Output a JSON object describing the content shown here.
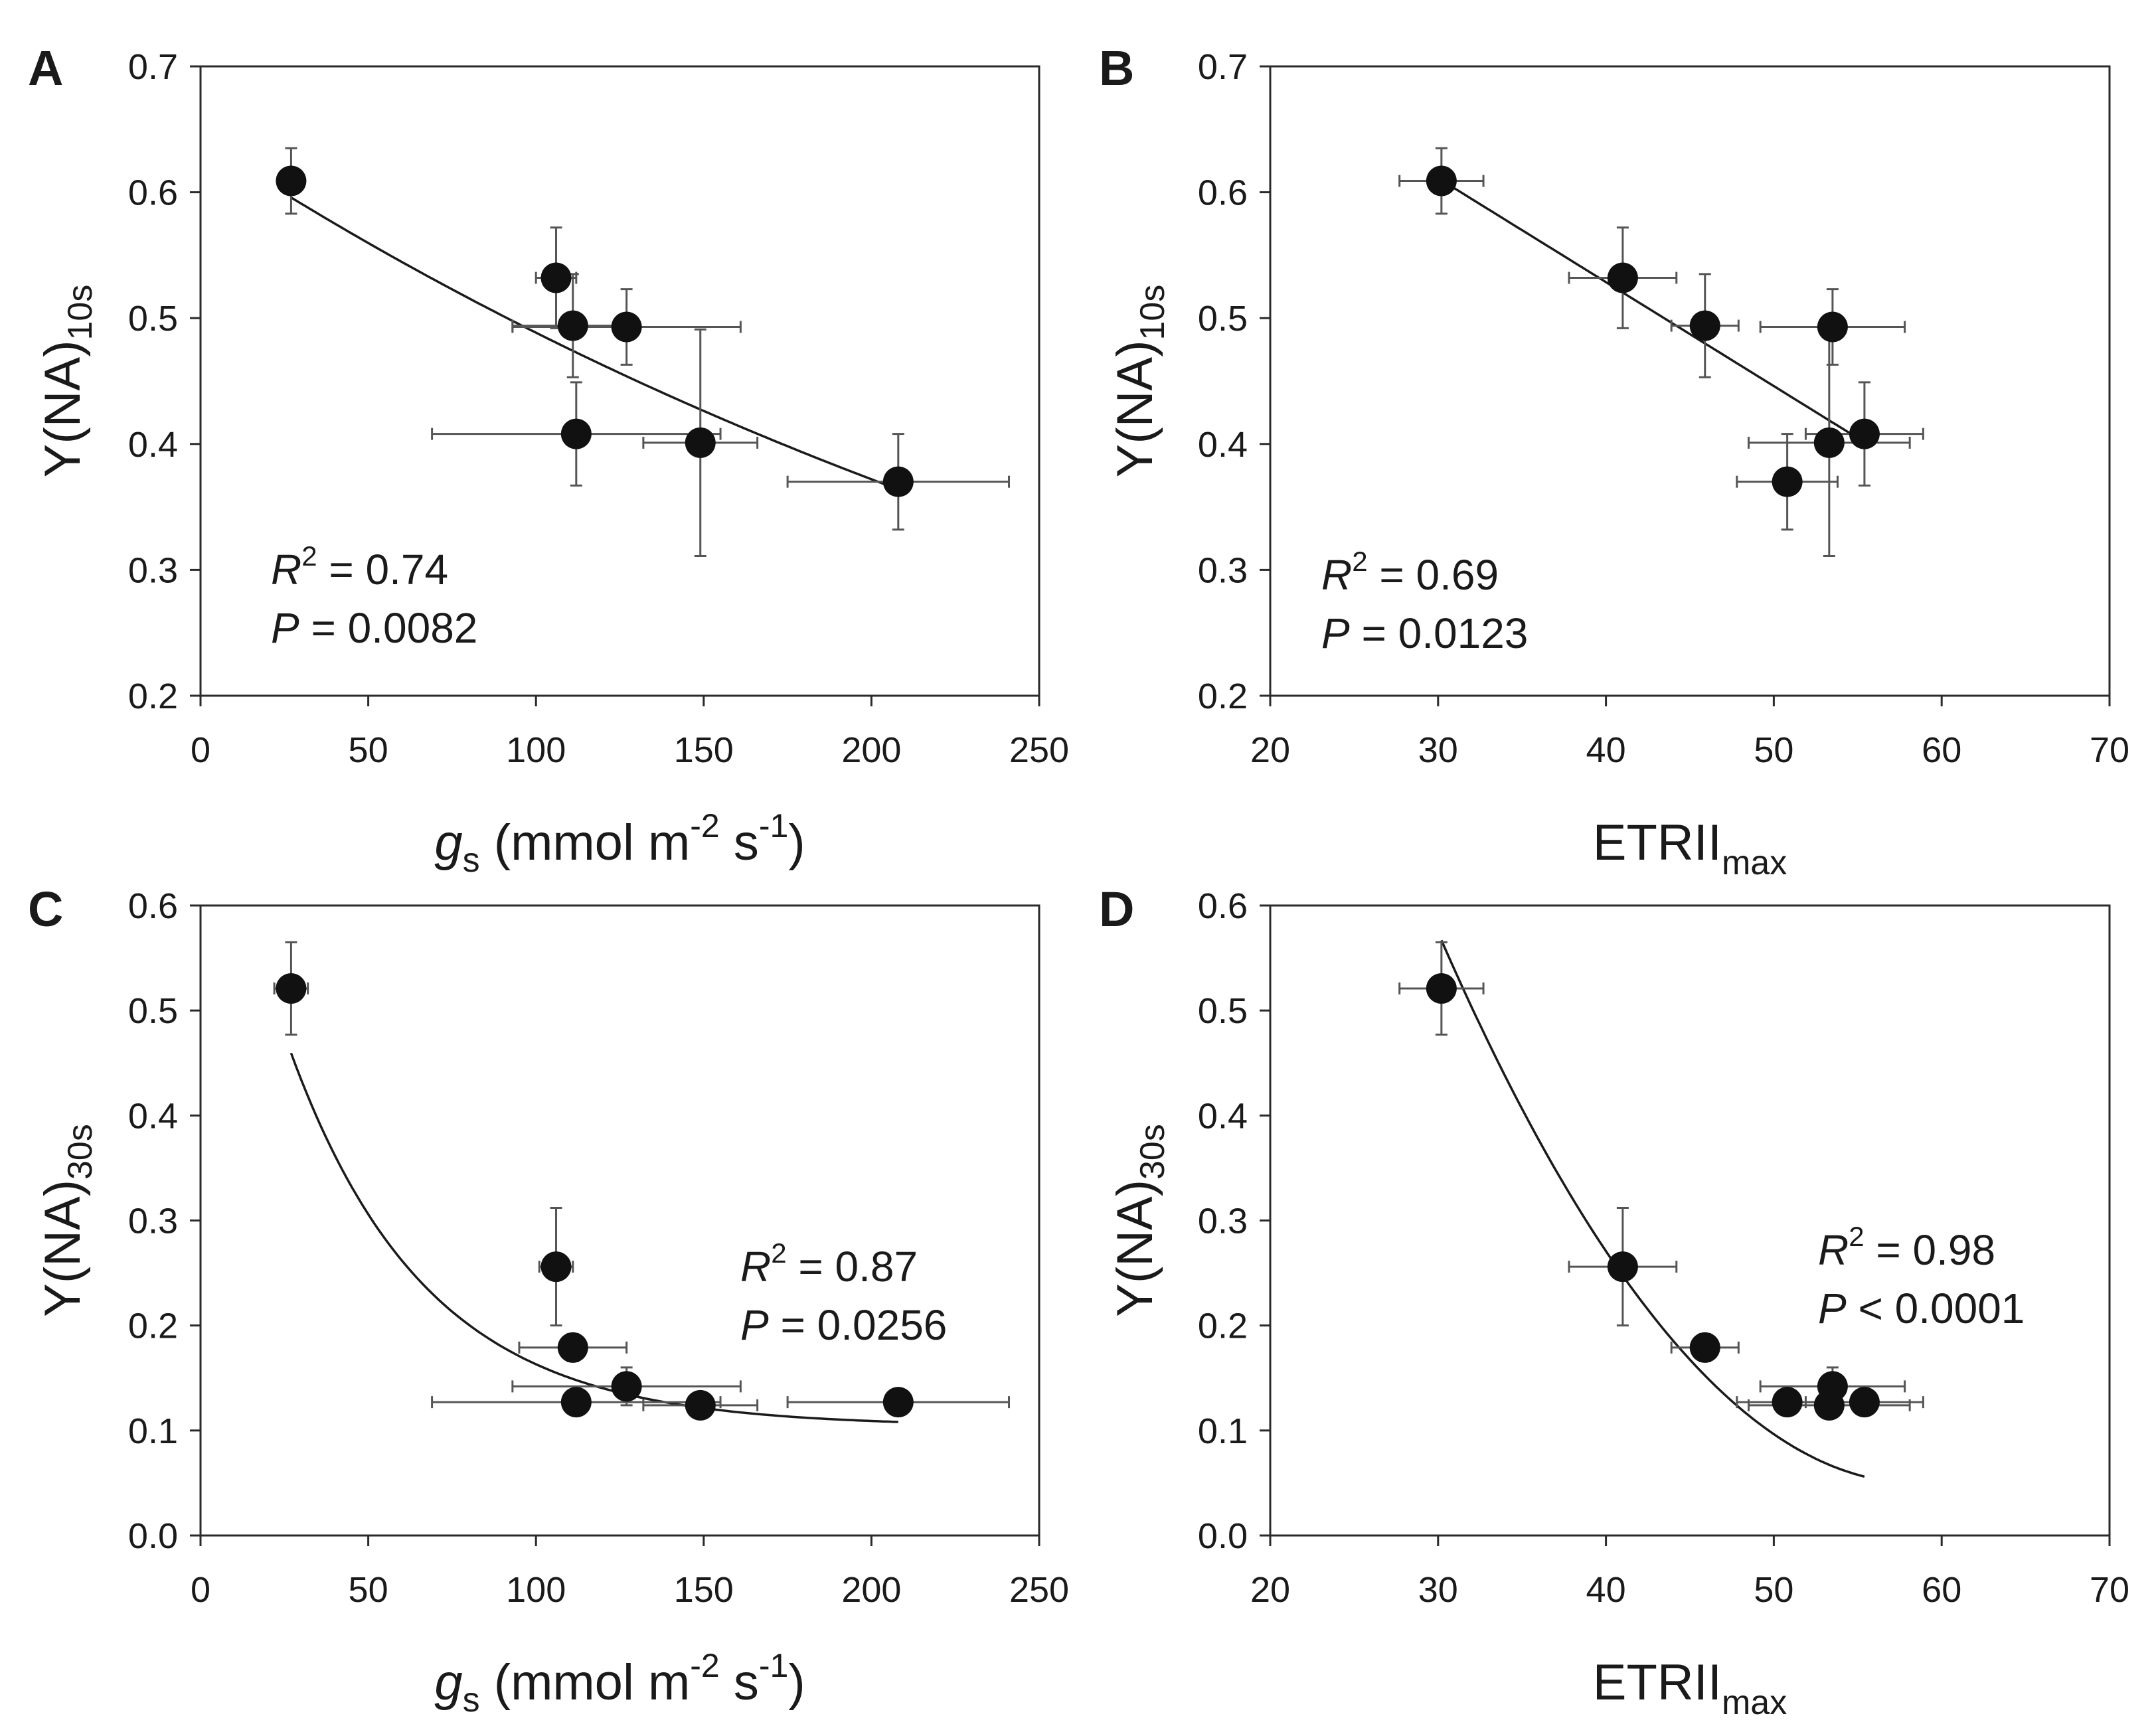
{
  "figure": {
    "description": "Four-panel scatter plot figure with regression fits"
  },
  "chart_data": [
    {
      "id": "A",
      "type": "scatter",
      "panel_label": "A",
      "xlabel": {
        "main": "g",
        "sub": "s",
        "rest": " (mmol m",
        "sup1": "-2",
        "mid": " s",
        "sup2": "-1",
        "end": ")"
      },
      "ylabel": {
        "main": "Y(NA)",
        "sub": "10s"
      },
      "xlim": [
        0,
        250
      ],
      "ylim": [
        0.2,
        0.7
      ],
      "xticks": [
        0,
        50,
        100,
        150,
        200,
        250
      ],
      "xtick_labels": [
        "0",
        "50",
        "100",
        "150",
        "200",
        "250"
      ],
      "yticks": [
        0.2,
        0.3,
        0.4,
        0.5,
        0.6,
        0.7
      ],
      "ytick_labels": [
        "0.2",
        "0.3",
        "0.4",
        "0.5",
        "0.6",
        "0.7"
      ],
      "points": [
        {
          "x": 27,
          "y": 0.609,
          "xerr": 3,
          "yerr": 0.026
        },
        {
          "x": 106,
          "y": 0.532,
          "xerr": 6,
          "yerr": 0.04
        },
        {
          "x": 111,
          "y": 0.494,
          "xerr": 18,
          "yerr": 0.041
        },
        {
          "x": 127,
          "y": 0.493,
          "xerr": 34,
          "yerr": 0.03
        },
        {
          "x": 112,
          "y": 0.408,
          "xerr": 43,
          "yerr": 0.041
        },
        {
          "x": 149,
          "y": 0.401,
          "xerr": 17,
          "yerr": 0.09
        },
        {
          "x": 208,
          "y": 0.37,
          "xerr": 33,
          "yerr": 0.038
        }
      ],
      "fit": {
        "model": "exponential",
        "a": 0.6413,
        "b": 0.002723,
        "c": 0,
        "x_range": [
          27,
          208
        ]
      },
      "stats": {
        "r2_label": "R",
        "r2_sup": "2",
        "r2_value": " = 0.74",
        "p_label": "P",
        "p_value": " = 0.0082"
      },
      "stats_position": "bottom-left"
    },
    {
      "id": "B",
      "type": "scatter",
      "panel_label": "B",
      "xlabel": {
        "main": "ETRII",
        "sub": "max"
      },
      "ylabel": {
        "main": "Y(NA)",
        "sub": "10s"
      },
      "xlim": [
        20,
        70
      ],
      "ylim": [
        0.2,
        0.7
      ],
      "xticks": [
        20,
        30,
        40,
        50,
        60,
        70
      ],
      "xtick_labels": [
        "20",
        "30",
        "40",
        "50",
        "60",
        "70"
      ],
      "yticks": [
        0.2,
        0.3,
        0.4,
        0.5,
        0.6,
        0.7
      ],
      "ytick_labels": [
        "0.2",
        "0.3",
        "0.4",
        "0.5",
        "0.6",
        "0.7"
      ],
      "points": [
        {
          "x": 30.2,
          "y": 0.609,
          "xerr": 2.5,
          "yerr": 0.026
        },
        {
          "x": 41.0,
          "y": 0.532,
          "xerr": 3.2,
          "yerr": 0.04
        },
        {
          "x": 45.9,
          "y": 0.494,
          "xerr": 2.0,
          "yerr": 0.041
        },
        {
          "x": 53.5,
          "y": 0.493,
          "xerr": 4.3,
          "yerr": 0.03
        },
        {
          "x": 55.4,
          "y": 0.408,
          "xerr": 3.5,
          "yerr": 0.041
        },
        {
          "x": 53.3,
          "y": 0.401,
          "xerr": 4.8,
          "yerr": 0.09
        },
        {
          "x": 50.8,
          "y": 0.37,
          "xerr": 3.0,
          "yerr": 0.038
        }
      ],
      "fit": {
        "model": "linear",
        "slope": -0.00826,
        "intercept": 0.859,
        "x_range": [
          30.2,
          55.4
        ]
      },
      "stats": {
        "r2_label": "R",
        "r2_sup": "2",
        "r2_value": " = 0.69",
        "p_label": "P",
        "p_value": " = 0.0123"
      },
      "stats_position": "bottom-left"
    },
    {
      "id": "C",
      "type": "scatter",
      "panel_label": "C",
      "xlabel": {
        "main": "g",
        "sub": "s",
        "rest": " (mmol m",
        "sup1": "-2",
        "mid": " s",
        "sup2": "-1",
        "end": ")"
      },
      "ylabel": {
        "main": "Y(NA)",
        "sub": "30s"
      },
      "xlim": [
        0,
        250
      ],
      "ylim": [
        0.0,
        0.6
      ],
      "xticks": [
        0,
        50,
        100,
        150,
        200,
        250
      ],
      "xtick_labels": [
        "0",
        "50",
        "100",
        "150",
        "200",
        "250"
      ],
      "yticks": [
        0.0,
        0.1,
        0.2,
        0.3,
        0.4,
        0.5,
        0.6
      ],
      "ytick_labels": [
        "0.0",
        "0.1",
        "0.2",
        "0.3",
        "0.4",
        "0.5",
        "0.6"
      ],
      "points": [
        {
          "x": 27,
          "y": 0.521,
          "xerr": 5,
          "yerr": 0.044
        },
        {
          "x": 106,
          "y": 0.256,
          "xerr": 5,
          "yerr": 0.056
        },
        {
          "x": 111,
          "y": 0.179,
          "xerr": 16,
          "yerr": 0.013
        },
        {
          "x": 127,
          "y": 0.142,
          "xerr": 34,
          "yerr": 0.018
        },
        {
          "x": 112,
          "y": 0.127,
          "xerr": 43,
          "yerr": 0.005
        },
        {
          "x": 149,
          "y": 0.124,
          "xerr": 17,
          "yerr": 0.005
        },
        {
          "x": 208,
          "y": 0.127,
          "xerr": 33,
          "yerr": 0.005
        }
      ],
      "fit": {
        "model": "exponential",
        "a": 0.6902,
        "b": 0.02458,
        "c": 0.104,
        "x_range": [
          27,
          208
        ]
      },
      "stats": {
        "r2_label": "R",
        "r2_sup": "2",
        "r2_value": " = 0.87",
        "p_label": "P",
        "p_value": " = 0.0256"
      },
      "stats_position": "middle-right"
    },
    {
      "id": "D",
      "type": "scatter",
      "panel_label": "D",
      "xlabel": {
        "main": "ETRII",
        "sub": "max"
      },
      "ylabel": {
        "main": "Y(NA)",
        "sub": "30s"
      },
      "xlim": [
        20,
        70
      ],
      "ylim": [
        0.0,
        0.6
      ],
      "xticks": [
        20,
        30,
        40,
        50,
        60,
        70
      ],
      "xtick_labels": [
        "20",
        "30",
        "40",
        "50",
        "60",
        "70"
      ],
      "yticks": [
        0.0,
        0.1,
        0.2,
        0.3,
        0.4,
        0.5,
        0.6
      ],
      "ytick_labels": [
        "0.0",
        "0.1",
        "0.2",
        "0.3",
        "0.4",
        "0.5",
        "0.6"
      ],
      "points": [
        {
          "x": 30.2,
          "y": 0.521,
          "xerr": 2.5,
          "yerr": 0.044
        },
        {
          "x": 41.0,
          "y": 0.256,
          "xerr": 3.2,
          "yerr": 0.056
        },
        {
          "x": 45.9,
          "y": 0.179,
          "xerr": 2.0,
          "yerr": 0.013
        },
        {
          "x": 53.5,
          "y": 0.142,
          "xerr": 4.3,
          "yerr": 0.018
        },
        {
          "x": 55.4,
          "y": 0.127,
          "xerr": 3.5,
          "yerr": 0.005
        },
        {
          "x": 53.3,
          "y": 0.124,
          "xerr": 4.8,
          "yerr": 0.005
        },
        {
          "x": 50.8,
          "y": 0.127,
          "xerr": 3.0,
          "yerr": 0.005
        }
      ],
      "fit": {
        "model": "quadratic",
        "c0": 2.2595,
        "c1": -0.07555,
        "c2": 0.0006458,
        "x_range": [
          30.2,
          55.4
        ]
      },
      "stats": {
        "r2_label": "R",
        "r2_sup": "2",
        "r2_value": " = 0.98",
        "p_label": "P",
        "p_value": " < 0.0001"
      },
      "stats_position": "middle-right"
    }
  ]
}
